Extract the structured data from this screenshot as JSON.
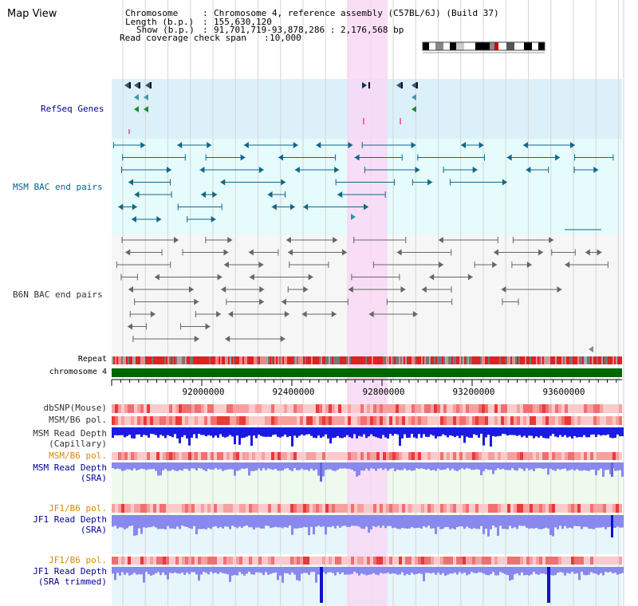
{
  "view_title": "Map View",
  "header": {
    "chromosome_label": "Chromosome",
    "chromosome_value": "Chromosome 4, reference assembly (C57BL/6J) (Build 37)",
    "length_label": "Length (b.p.)",
    "length_value": "155,630,120",
    "show_label": "Show (b.p.)",
    "show_value": "91,701,719-93,878,286 : 2,176,568 bp",
    "span_label": "Read coverage check span",
    "span_value": "10,000"
  },
  "tracks": {
    "refseq": "RefSeq Genes",
    "msm_bac": "MSM BAC end pairs",
    "b6n_bac": "B6N BAC end pairs",
    "repeat": "Repeat",
    "chromosome": "chromosome 4",
    "dbsnp": "dbSNP(Mouse)",
    "msm_b6_pol": "MSM/B6 pol.",
    "msm_depth_cap_1": "MSM Read Depth",
    "msm_depth_cap_2": "(Capillary)",
    "msm_b6_pol_2": "MSM/B6 pol.",
    "msm_depth_sra_1": "MSM Read Depth",
    "msm_depth_sra_2": "(SRA)",
    "jf1_b6_pol": "JF1/B6 pol.",
    "jf1_depth_sra_1": "JF1 Read Depth",
    "jf1_depth_sra_2": "(SRA)",
    "jf1_b6_pol_2": "JF1/B6 pol.",
    "jf1_depth_trim_1": "JF1 Read Depth",
    "jf1_depth_trim_2": "(SRA trimmed)"
  },
  "axis_ticks": [
    "92000000",
    "92400000",
    "92800000",
    "93200000",
    "93600000"
  ],
  "colors": {
    "refseq_label": "#000099",
    "msm_bac_label": "#006688",
    "b6n_label": "#333333",
    "orange_label": "#dd8800",
    "blue_label": "#000099",
    "highlight": "#f8d8f4",
    "chromosome_bar": "#006600"
  },
  "chromosome_icon": "chromosome-ideogram-icon"
}
